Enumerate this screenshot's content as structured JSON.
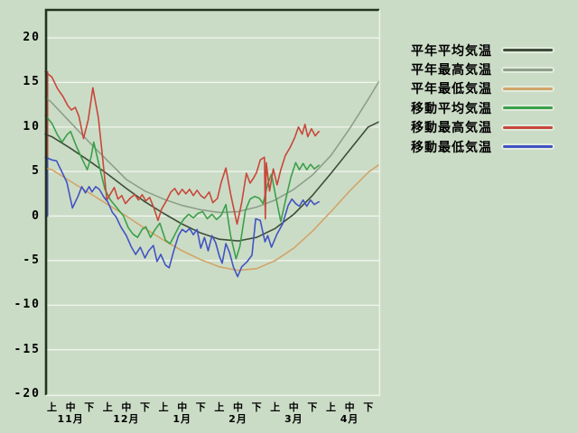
{
  "style": {
    "background": "#cbdcc6",
    "grid_color": "#f3f7f1",
    "border_dark": "#22331f",
    "border_light": "#eaf2e6",
    "text_color": "#000000"
  },
  "chart_data": {
    "type": "line",
    "title": "",
    "description_unit": "°C",
    "y_axis": {
      "min": -20,
      "max": 20,
      "ticks": [
        20,
        15,
        10,
        5,
        0,
        -5,
        -10,
        -15,
        -20
      ]
    },
    "x_axis": {
      "jun_labels": [
        "上",
        "中",
        "下"
      ],
      "month_labels": [
        "11月",
        "12月",
        "1月",
        "2月",
        "3月",
        "4月"
      ]
    },
    "legend_position": "right",
    "grid": true,
    "series": [
      {
        "id": "normal-mean",
        "label": "平年平均気温",
        "color": "#3c4c38",
        "left_spike": false,
        "points": [
          [
            -0.36,
            9.2
          ],
          [
            0,
            8.9
          ],
          [
            1,
            7.6
          ],
          [
            2,
            6.2
          ],
          [
            3,
            4.7
          ],
          [
            4,
            3.1
          ],
          [
            5,
            1.6
          ],
          [
            6,
            0.3
          ],
          [
            7,
            -0.9
          ],
          [
            8,
            -1.9
          ],
          [
            9,
            -2.6
          ],
          [
            10,
            -2.8
          ],
          [
            11,
            -2.4
          ],
          [
            12,
            -1.4
          ],
          [
            13,
            0.2
          ],
          [
            14,
            2.3
          ],
          [
            15,
            4.8
          ],
          [
            16,
            7.4
          ],
          [
            17,
            10.0
          ],
          [
            17.6,
            10.6
          ]
        ]
      },
      {
        "id": "normal-max",
        "label": "平年最高気温",
        "color": "#8d9e89",
        "left_spike": false,
        "points": [
          [
            -0.36,
            13.4
          ],
          [
            0,
            12.7
          ],
          [
            1,
            10.5
          ],
          [
            2,
            8.3
          ],
          [
            3,
            6.2
          ],
          [
            4,
            4.1
          ],
          [
            5,
            2.8
          ],
          [
            6,
            1.9
          ],
          [
            7,
            1.2
          ],
          [
            8,
            0.7
          ],
          [
            9,
            0.4
          ],
          [
            10,
            0.5
          ],
          [
            11,
            1.0
          ],
          [
            12,
            1.8
          ],
          [
            13,
            3.0
          ],
          [
            14,
            4.6
          ],
          [
            15,
            6.8
          ],
          [
            16,
            9.8
          ],
          [
            17,
            13.1
          ],
          [
            17.6,
            15.2
          ]
        ]
      },
      {
        "id": "normal-min",
        "label": "平年最低気温",
        "color": "#d2a469",
        "left_spike": false,
        "points": [
          [
            -0.36,
            5.4
          ],
          [
            0,
            5.2
          ],
          [
            1,
            3.9
          ],
          [
            2,
            2.6
          ],
          [
            3,
            1.3
          ],
          [
            4,
            0.0
          ],
          [
            5,
            -1.4
          ],
          [
            6,
            -2.7
          ],
          [
            7,
            -3.9
          ],
          [
            8,
            -4.9
          ],
          [
            9,
            -5.7
          ],
          [
            10,
            -6.1
          ],
          [
            11,
            -5.9
          ],
          [
            12,
            -5.0
          ],
          [
            13,
            -3.6
          ],
          [
            14,
            -1.7
          ],
          [
            15,
            0.5
          ],
          [
            16,
            2.8
          ],
          [
            17,
            4.9
          ],
          [
            17.6,
            5.8
          ]
        ]
      },
      {
        "id": "moving-mean",
        "label": "移動平均気温",
        "color": "#3aa04a",
        "left_spike": false,
        "points": [
          [
            -0.36,
            11.3
          ],
          [
            0,
            10.4
          ],
          [
            0.3,
            9.1
          ],
          [
            0.55,
            8.3
          ],
          [
            0.8,
            9.1
          ],
          [
            1.0,
            9.5
          ],
          [
            1.3,
            7.9
          ],
          [
            1.6,
            6.5
          ],
          [
            1.9,
            5.2
          ],
          [
            2.1,
            6.6
          ],
          [
            2.25,
            8.3
          ],
          [
            2.55,
            5.6
          ],
          [
            2.85,
            3.0
          ],
          [
            3.15,
            1.8
          ],
          [
            3.5,
            0.9
          ],
          [
            3.85,
            0.0
          ],
          [
            4.1,
            -1.3
          ],
          [
            4.35,
            -2.0
          ],
          [
            4.6,
            -2.4
          ],
          [
            4.85,
            -1.5
          ],
          [
            5.05,
            -1.2
          ],
          [
            5.3,
            -2.4
          ],
          [
            5.55,
            -1.5
          ],
          [
            5.8,
            -0.8
          ],
          [
            6.1,
            -2.7
          ],
          [
            6.35,
            -3.1
          ],
          [
            6.6,
            -2.1
          ],
          [
            6.85,
            -1.1
          ],
          [
            7.1,
            -0.3
          ],
          [
            7.35,
            0.2
          ],
          [
            7.6,
            -0.2
          ],
          [
            7.85,
            0.3
          ],
          [
            8.1,
            0.5
          ],
          [
            8.35,
            -0.3
          ],
          [
            8.6,
            0.2
          ],
          [
            8.85,
            -0.4
          ],
          [
            9.1,
            0.1
          ],
          [
            9.35,
            1.3
          ],
          [
            9.6,
            -2.2
          ],
          [
            9.9,
            -4.8
          ],
          [
            10.1,
            -3.4
          ],
          [
            10.4,
            0.6
          ],
          [
            10.65,
            1.9
          ],
          [
            10.9,
            2.2
          ],
          [
            11.15,
            2.0
          ],
          [
            11.35,
            1.4
          ],
          [
            11.6,
            3.6
          ],
          [
            11.8,
            4.7
          ],
          [
            12.05,
            2.0
          ],
          [
            12.3,
            -0.6
          ],
          [
            12.6,
            2.2
          ],
          [
            12.85,
            4.4
          ],
          [
            13.1,
            6.0
          ],
          [
            13.3,
            5.2
          ],
          [
            13.5,
            5.9
          ],
          [
            13.7,
            5.2
          ],
          [
            13.9,
            5.8
          ],
          [
            14.1,
            5.3
          ],
          [
            14.35,
            5.7
          ]
        ]
      },
      {
        "id": "moving-max",
        "label": "移動最高気温",
        "color": "#c8473a",
        "left_spike": true,
        "points": [
          [
            -0.36,
            16.2
          ],
          [
            0,
            15.6
          ],
          [
            0.3,
            14.3
          ],
          [
            0.6,
            13.4
          ],
          [
            0.85,
            12.4
          ],
          [
            1.05,
            11.9
          ],
          [
            1.25,
            12.2
          ],
          [
            1.45,
            11.2
          ],
          [
            1.7,
            8.7
          ],
          [
            1.95,
            10.8
          ],
          [
            2.2,
            14.4
          ],
          [
            2.5,
            11.0
          ],
          [
            2.75,
            6.0
          ],
          [
            2.95,
            1.8
          ],
          [
            3.15,
            2.5
          ],
          [
            3.35,
            3.2
          ],
          [
            3.55,
            1.9
          ],
          [
            3.75,
            2.3
          ],
          [
            3.95,
            1.4
          ],
          [
            4.2,
            2.0
          ],
          [
            4.45,
            2.4
          ],
          [
            4.65,
            1.8
          ],
          [
            4.85,
            2.4
          ],
          [
            5.05,
            1.7
          ],
          [
            5.25,
            2.1
          ],
          [
            5.5,
            0.8
          ],
          [
            5.7,
            -0.5
          ],
          [
            5.9,
            0.8
          ],
          [
            6.15,
            1.7
          ],
          [
            6.4,
            2.7
          ],
          [
            6.6,
            3.1
          ],
          [
            6.8,
            2.4
          ],
          [
            7.0,
            3.0
          ],
          [
            7.2,
            2.5
          ],
          [
            7.4,
            3.0
          ],
          [
            7.6,
            2.3
          ],
          [
            7.8,
            2.9
          ],
          [
            8.0,
            2.3
          ],
          [
            8.2,
            2.0
          ],
          [
            8.45,
            2.7
          ],
          [
            8.65,
            1.5
          ],
          [
            8.9,
            2.0
          ],
          [
            9.1,
            3.8
          ],
          [
            9.35,
            5.4
          ],
          [
            9.6,
            2.5
          ],
          [
            9.95,
            -0.9
          ],
          [
            10.2,
            1.5
          ],
          [
            10.45,
            4.8
          ],
          [
            10.65,
            3.7
          ],
          [
            10.85,
            4.3
          ],
          [
            11.0,
            4.9
          ],
          [
            11.2,
            6.3
          ],
          [
            11.42,
            6.6
          ],
          [
            11.47,
            -0.3
          ],
          [
            11.52,
            6.0
          ],
          [
            11.7,
            2.8
          ],
          [
            11.9,
            5.3
          ],
          [
            12.1,
            3.5
          ],
          [
            12.3,
            5.2
          ],
          [
            12.55,
            6.8
          ],
          [
            12.8,
            7.7
          ],
          [
            13.05,
            8.8
          ],
          [
            13.25,
            10.0
          ],
          [
            13.45,
            9.2
          ],
          [
            13.6,
            10.3
          ],
          [
            13.75,
            8.9
          ],
          [
            13.95,
            9.8
          ],
          [
            14.15,
            9.0
          ],
          [
            14.35,
            9.5
          ]
        ]
      },
      {
        "id": "moving-min",
        "label": "移動最低気温",
        "color": "#4253c4",
        "left_spike": true,
        "points": [
          [
            -0.36,
            6.6
          ],
          [
            0,
            6.3
          ],
          [
            0.25,
            6.2
          ],
          [
            0.55,
            4.9
          ],
          [
            0.8,
            3.8
          ],
          [
            1.1,
            0.9
          ],
          [
            1.4,
            2.2
          ],
          [
            1.6,
            3.3
          ],
          [
            1.8,
            2.6
          ],
          [
            2.0,
            3.3
          ],
          [
            2.15,
            2.7
          ],
          [
            2.35,
            3.3
          ],
          [
            2.55,
            3.0
          ],
          [
            2.8,
            2.1
          ],
          [
            3.0,
            1.6
          ],
          [
            3.25,
            0.4
          ],
          [
            3.45,
            -0.1
          ],
          [
            3.7,
            -1.2
          ],
          [
            4.0,
            -2.2
          ],
          [
            4.25,
            -3.4
          ],
          [
            4.5,
            -4.3
          ],
          [
            4.75,
            -3.5
          ],
          [
            5.0,
            -4.7
          ],
          [
            5.2,
            -3.9
          ],
          [
            5.45,
            -3.3
          ],
          [
            5.65,
            -5.1
          ],
          [
            5.85,
            -4.3
          ],
          [
            6.1,
            -5.5
          ],
          [
            6.3,
            -5.8
          ],
          [
            6.55,
            -3.9
          ],
          [
            6.8,
            -2.2
          ],
          [
            7.0,
            -1.5
          ],
          [
            7.2,
            -1.8
          ],
          [
            7.4,
            -1.4
          ],
          [
            7.6,
            -2.1
          ],
          [
            7.8,
            -1.5
          ],
          [
            8.0,
            -3.6
          ],
          [
            8.2,
            -2.4
          ],
          [
            8.4,
            -3.9
          ],
          [
            8.6,
            -2.2
          ],
          [
            8.8,
            -3.0
          ],
          [
            9.0,
            -4.5
          ],
          [
            9.15,
            -5.3
          ],
          [
            9.35,
            -3.1
          ],
          [
            9.55,
            -4.1
          ],
          [
            9.75,
            -5.7
          ],
          [
            9.98,
            -6.8
          ],
          [
            10.2,
            -5.7
          ],
          [
            10.5,
            -5.1
          ],
          [
            10.75,
            -4.4
          ],
          [
            10.95,
            -0.3
          ],
          [
            11.2,
            -0.5
          ],
          [
            11.45,
            -2.9
          ],
          [
            11.6,
            -2.2
          ],
          [
            11.8,
            -3.5
          ],
          [
            12.1,
            -2.0
          ],
          [
            12.4,
            -0.9
          ],
          [
            12.7,
            1.2
          ],
          [
            12.9,
            1.9
          ],
          [
            13.1,
            1.4
          ],
          [
            13.3,
            1.1
          ],
          [
            13.5,
            1.8
          ],
          [
            13.7,
            1.1
          ],
          [
            13.9,
            1.8
          ],
          [
            14.1,
            1.3
          ],
          [
            14.35,
            1.6
          ]
        ]
      }
    ]
  }
}
